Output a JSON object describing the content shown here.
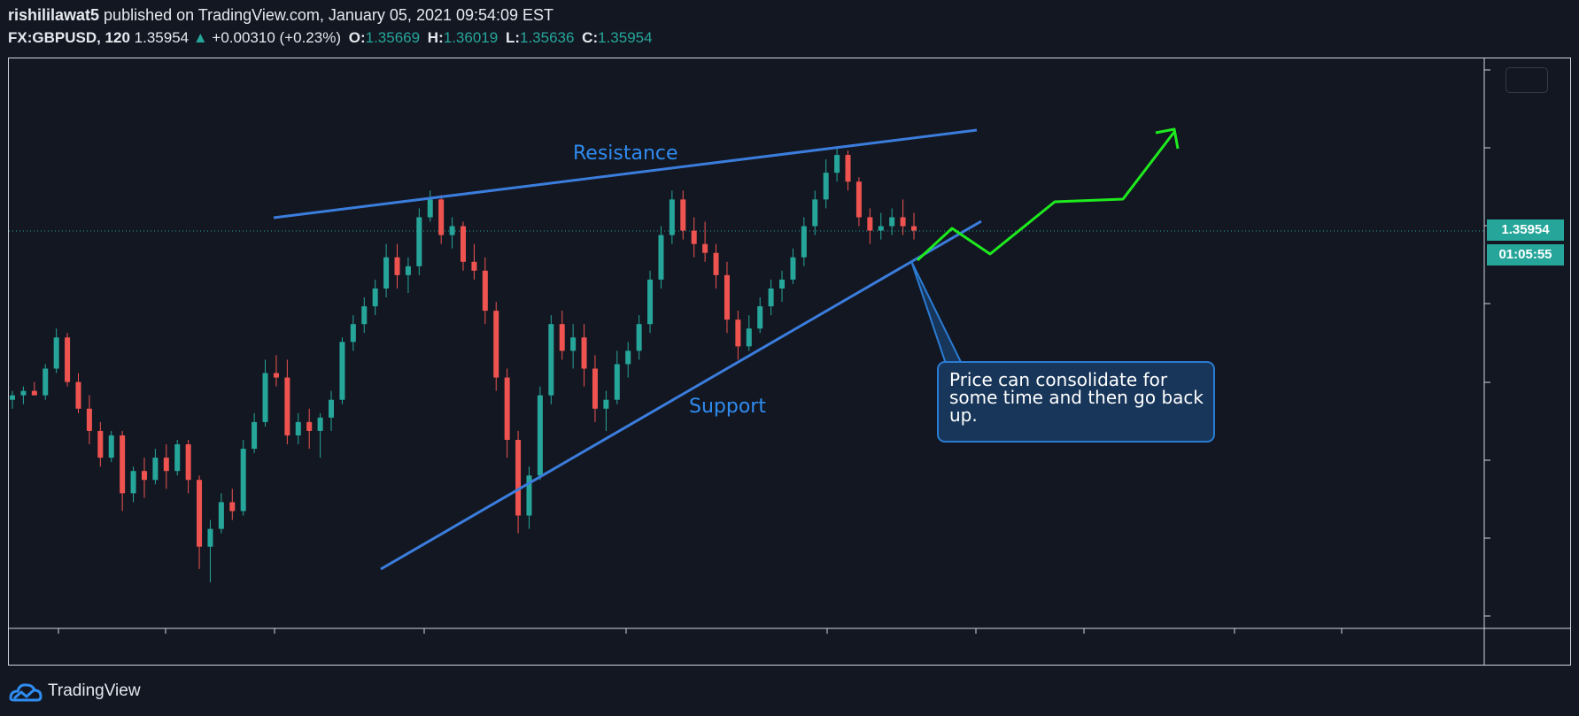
{
  "header": {
    "user": "rishililawat5",
    "published_text": " published on TradingView.com, January 05, 2021 09:54:09 EST",
    "symbol": "FX:GBPUSD, 120",
    "last": "1.35954",
    "change": "+0.00310 (+0.23%)",
    "open_label": "O:",
    "open": "1.35669",
    "high_label": "H:",
    "high": "1.36019",
    "low_label": "L:",
    "low": "1.35636",
    "close_label": "C:",
    "close": "1.35954"
  },
  "price_axis": {
    "current_price": "1.35954",
    "countdown": "01:05:55"
  },
  "annotations": {
    "resistance": "Resistance",
    "support": "Support",
    "callout": "Price can consolidate for some time and then go back up."
  },
  "footer": {
    "brand": "TradingView"
  },
  "colors": {
    "background": "#131722",
    "up_candle": "#26a69a",
    "down_candle": "#ef5350",
    "trendline": "#3b7ddd",
    "projection": "#1eea1e",
    "callout_bg": "#18365a"
  },
  "chart_data": {
    "type": "candlestick",
    "symbol": "FX:GBPUSD",
    "interval": "120",
    "current_price": 1.35954,
    "ohlc_last": {
      "open": 1.35669,
      "high": 1.36019,
      "low": 1.35636,
      "close": 1.35954
    },
    "y_axis_labels_shown": false,
    "x_axis_labels_shown": false,
    "note": "Price axis and time axis tick labels are not printed; candle values are relative price levels (0 = lowest visible low, 100 = highest visible high).",
    "candles_relative": [
      [
        43,
        45,
        41,
        44
      ],
      [
        44,
        46,
        42,
        45
      ],
      [
        45,
        47,
        44,
        44
      ],
      [
        44,
        51,
        43,
        50
      ],
      [
        50,
        59,
        49,
        57
      ],
      [
        57,
        58,
        46,
        47
      ],
      [
        47,
        49,
        40,
        41
      ],
      [
        41,
        44,
        33,
        36
      ],
      [
        36,
        38,
        28,
        30
      ],
      [
        30,
        36,
        29,
        35
      ],
      [
        35,
        36,
        18,
        22
      ],
      [
        22,
        28,
        20,
        27
      ],
      [
        27,
        30,
        21,
        25
      ],
      [
        25,
        32,
        24,
        30
      ],
      [
        30,
        33,
        23,
        27
      ],
      [
        27,
        34,
        26,
        33
      ],
      [
        33,
        34,
        22,
        25
      ],
      [
        25,
        26,
        5,
        10
      ],
      [
        10,
        16,
        2,
        14
      ],
      [
        14,
        22,
        13,
        20
      ],
      [
        20,
        23,
        16,
        18
      ],
      [
        18,
        34,
        17,
        32
      ],
      [
        32,
        40,
        31,
        38
      ],
      [
        38,
        52,
        37,
        49
      ],
      [
        49,
        53,
        46,
        48
      ],
      [
        48,
        52,
        33,
        35
      ],
      [
        35,
        40,
        33,
        38
      ],
      [
        38,
        41,
        32,
        36
      ],
      [
        36,
        40,
        30,
        39
      ],
      [
        39,
        45,
        36,
        43
      ],
      [
        43,
        57,
        42,
        56
      ],
      [
        56,
        62,
        54,
        60
      ],
      [
        60,
        66,
        58,
        64
      ],
      [
        64,
        70,
        62,
        68
      ],
      [
        68,
        78,
        66,
        75
      ],
      [
        75,
        78,
        68,
        71
      ],
      [
        71,
        75,
        67,
        73
      ],
      [
        73,
        86,
        71,
        84
      ],
      [
        84,
        90,
        83,
        88
      ],
      [
        88,
        89,
        78,
        80
      ],
      [
        80,
        84,
        77,
        82
      ],
      [
        82,
        83,
        72,
        74
      ],
      [
        74,
        78,
        70,
        72
      ],
      [
        72,
        75,
        60,
        63
      ],
      [
        63,
        65,
        45,
        48
      ],
      [
        48,
        50,
        30,
        34
      ],
      [
        34,
        36,
        13,
        17
      ],
      [
        17,
        28,
        14,
        26
      ],
      [
        26,
        46,
        25,
        44
      ],
      [
        44,
        62,
        42,
        60
      ],
      [
        60,
        63,
        52,
        54
      ],
      [
        54,
        60,
        50,
        57
      ],
      [
        57,
        60,
        46,
        50
      ],
      [
        50,
        53,
        38,
        41
      ],
      [
        41,
        45,
        36,
        43
      ],
      [
        43,
        54,
        42,
        51
      ],
      [
        51,
        56,
        48,
        54
      ],
      [
        54,
        62,
        52,
        60
      ],
      [
        60,
        72,
        58,
        70
      ],
      [
        70,
        82,
        68,
        80
      ],
      [
        80,
        90,
        78,
        88
      ],
      [
        88,
        90,
        79,
        81
      ],
      [
        81,
        84,
        75,
        78
      ],
      [
        78,
        83,
        74,
        76
      ],
      [
        76,
        78,
        68,
        71
      ],
      [
        71,
        74,
        58,
        61
      ],
      [
        61,
        63,
        52,
        55
      ],
      [
        55,
        62,
        54,
        59
      ],
      [
        59,
        66,
        58,
        64
      ],
      [
        64,
        70,
        62,
        68
      ],
      [
        68,
        72,
        65,
        70
      ],
      [
        70,
        77,
        69,
        75
      ],
      [
        75,
        84,
        73,
        82
      ],
      [
        82,
        90,
        80,
        88
      ],
      [
        88,
        97,
        86,
        94
      ],
      [
        94,
        100,
        92,
        98
      ],
      [
        98,
        99,
        90,
        92
      ],
      [
        92,
        93,
        82,
        84
      ],
      [
        84,
        86,
        78,
        81
      ],
      [
        81,
        85,
        79,
        82
      ],
      [
        82,
        86,
        80,
        84
      ],
      [
        84,
        88,
        80,
        82
      ],
      [
        82,
        85,
        79,
        81
      ]
    ],
    "trendlines": [
      {
        "name": "Resistance",
        "kind": "rising",
        "touches": 2
      },
      {
        "name": "Support",
        "kind": "rising",
        "touches": 2
      }
    ],
    "projection": {
      "description": "zig-zag path continuing higher with arrow at end",
      "direction": "up"
    }
  }
}
